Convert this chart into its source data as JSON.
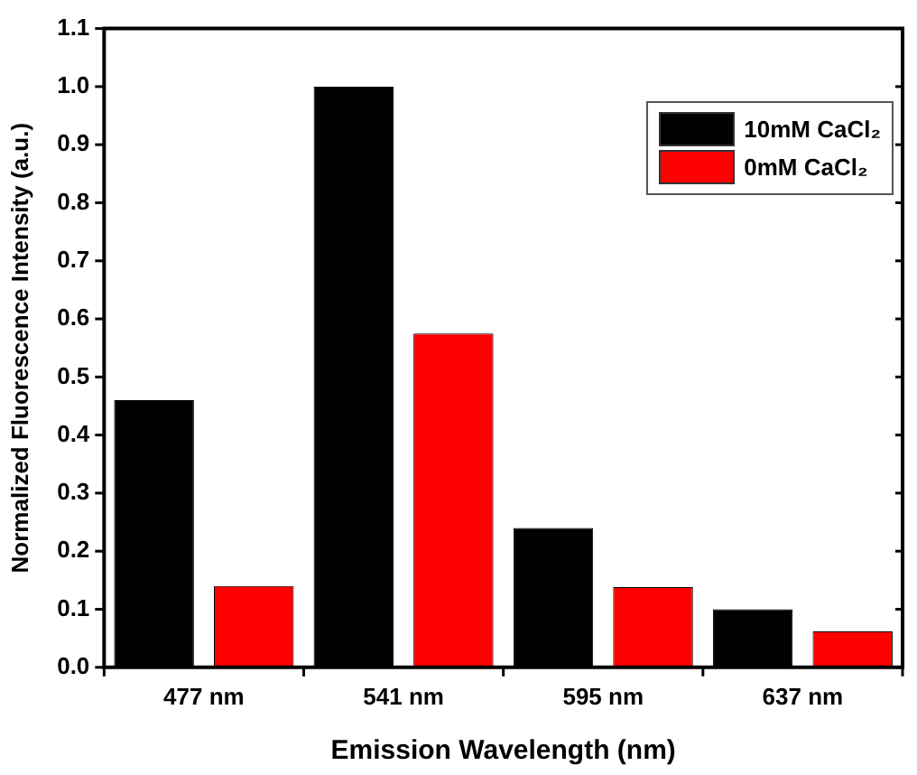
{
  "chart_data": {
    "type": "bar",
    "xlabel": "Emission Wavelength (nm)",
    "ylabel": "Normalized Fluorescence Intensity (a.u.)",
    "categories": [
      "477 nm",
      "541 nm",
      "595 nm",
      "637 nm"
    ],
    "series": [
      {
        "name": "10mM CaCl₂",
        "color": "#000000",
        "values": [
          0.46,
          1.0,
          0.24,
          0.1
        ]
      },
      {
        "name": "0mM CaCl₂",
        "color": "#ff0000",
        "values": [
          0.14,
          0.575,
          0.138,
          0.062
        ]
      }
    ],
    "ylim": [
      0,
      1.1
    ],
    "yticks": [
      {
        "value": 0,
        "label": "0.0"
      },
      0.1,
      0.2,
      0.3,
      0.4,
      0.5,
      0.6,
      0.7,
      0.8,
      0.9,
      {
        "value": 1,
        "label": "1.0"
      },
      1.1
    ],
    "grid": false,
    "legend": "top right"
  }
}
